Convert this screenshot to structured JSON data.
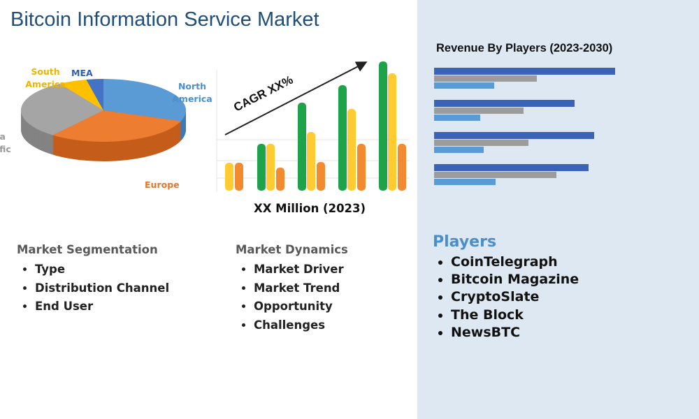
{
  "header": {
    "title": "Bitcoin Information Service Market"
  },
  "pie_labels": [
    "North America",
    "Europe",
    "Asia Pacific",
    "South America",
    "MEA"
  ],
  "growth_chart": {
    "annotation": "CAGR XX%",
    "caption": "XX Million (2023)"
  },
  "revenue_chart": {
    "title": "Revenue By Players (2023-2030)"
  },
  "segmentation": {
    "heading": "Market Segmentation",
    "items": [
      "Type",
      "Distribution Channel",
      "End User"
    ]
  },
  "dynamics": {
    "heading": "Market Dynamics",
    "items": [
      "Market Driver",
      "Market Trend",
      "Opportunity",
      "Challenges"
    ]
  },
  "players": {
    "heading": "Players",
    "items": [
      "CoinTelegraph",
      "Bitcoin Magazine",
      "CryptoSlate",
      "The Block",
      "NewsBTC"
    ]
  }
}
